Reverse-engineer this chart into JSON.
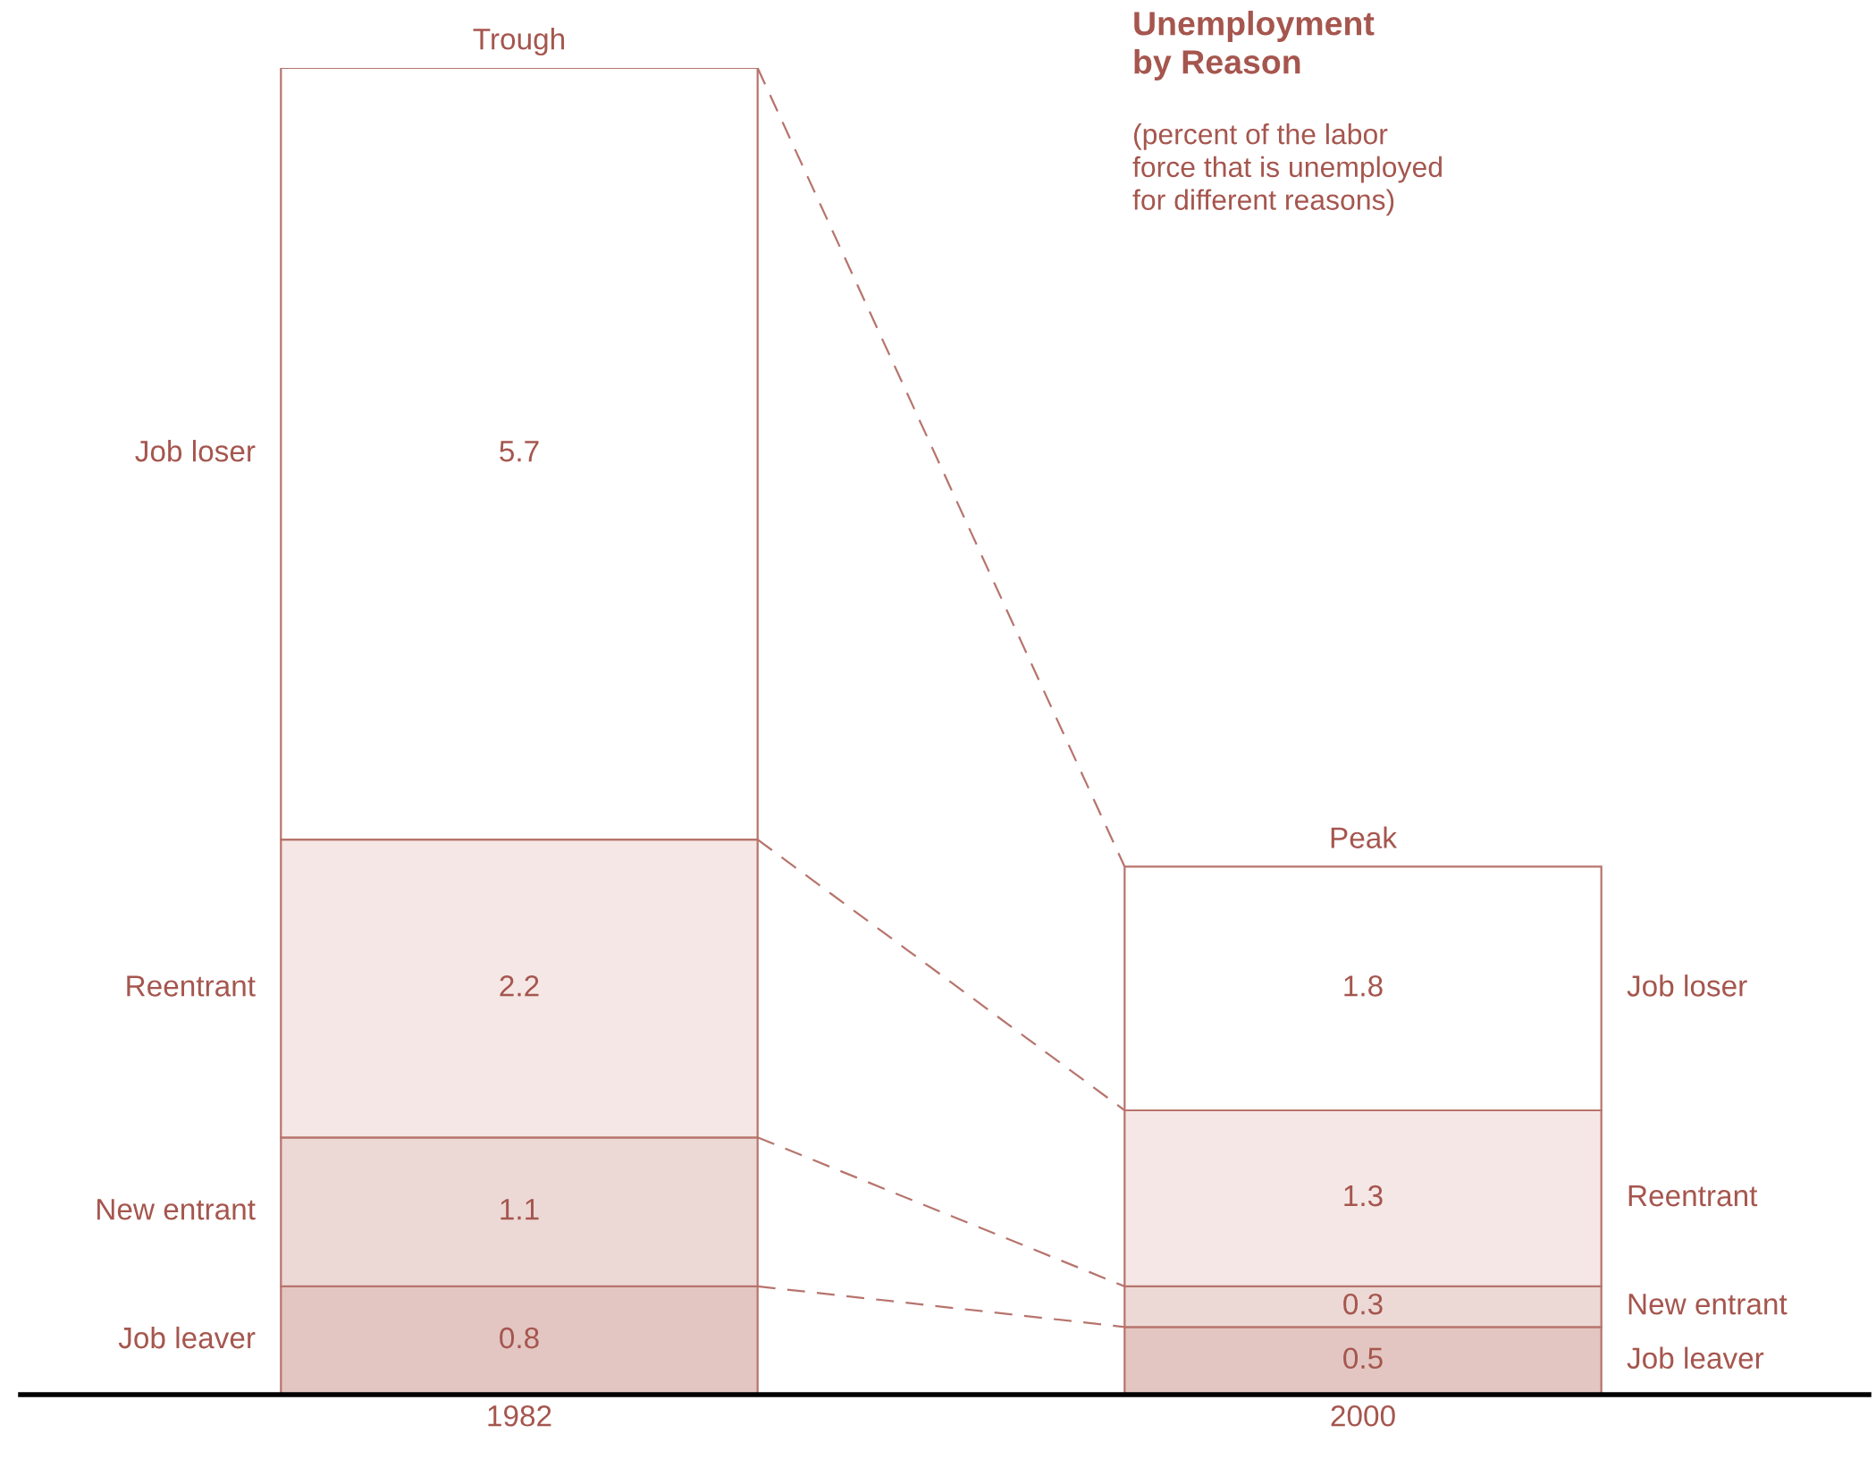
{
  "chart_data": {
    "type": "bar",
    "stacked": true,
    "title": "Unemployment\nby Reason",
    "subtitle": "(percent of the labor\nforce that is unemployed\nfor different reasons)",
    "categories": [
      "1982",
      "2000"
    ],
    "series": [
      {
        "name": "Job leaver",
        "color": "#e3c6c1",
        "values": [
          0.8,
          0.5
        ]
      },
      {
        "name": "New entrant",
        "color": "#ecd9d6",
        "values": [
          1.1,
          0.3
        ]
      },
      {
        "name": "Reentrant",
        "color": "#f5e7e5",
        "values": [
          2.2,
          1.3
        ]
      },
      {
        "name": "Job loser",
        "color": "#ffffff",
        "values": [
          5.7,
          1.8
        ]
      }
    ],
    "annotations": [
      {
        "text": "Trough",
        "x": "1982",
        "y": 9.8
      },
      {
        "text": "Peak",
        "x": "2000",
        "y": 3.9
      }
    ],
    "data_labels": true,
    "line_style": "dashed",
    "legend": false,
    "grid": false,
    "tick_labels": "x"
  }
}
